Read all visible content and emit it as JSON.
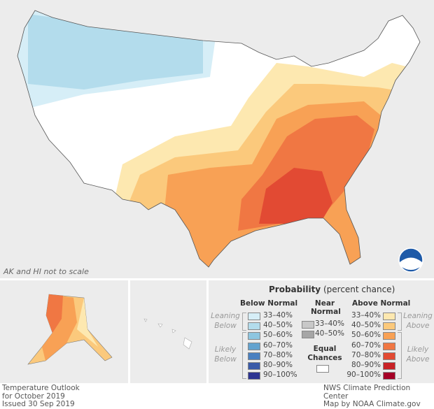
{
  "map_note": "AK and HI not to scale",
  "legend": {
    "title_bold": "Probability",
    "title_rest": "(percent chance)",
    "below": {
      "heading": "Below Normal",
      "leaning": "Leaning Below",
      "likely": "Likely Below",
      "items": [
        {
          "label": "33–40%",
          "color": "#d6eef7"
        },
        {
          "label": "40–50%",
          "color": "#b3dcec"
        },
        {
          "label": "50–60%",
          "color": "#8ec6e0"
        },
        {
          "label": "60–70%",
          "color": "#63a3cf"
        },
        {
          "label": "70–80%",
          "color": "#4a80c0"
        },
        {
          "label": "80–90%",
          "color": "#3a5aa8"
        },
        {
          "label": "90–100%",
          "color": "#2c3391"
        }
      ]
    },
    "near": {
      "heading_1": "Near",
      "heading_2": "Normal",
      "items": [
        {
          "label": "33–40%",
          "color": "#c8c8c8"
        },
        {
          "label": "40–50%",
          "color": "#a6a6a6"
        }
      ]
    },
    "equal": {
      "heading_1": "Equal",
      "heading_2": "Chances",
      "color": "#ffffff"
    },
    "above": {
      "heading": "Above Normal",
      "leaning": "Leaning Above",
      "likely": "Likely Above",
      "items": [
        {
          "label": "33–40%",
          "color": "#fde8b0"
        },
        {
          "label": "40–50%",
          "color": "#fbc97c"
        },
        {
          "label": "50–60%",
          "color": "#f8a155"
        },
        {
          "label": "60–70%",
          "color": "#f07743"
        },
        {
          "label": "70–80%",
          "color": "#e24a33"
        },
        {
          "label": "80–90%",
          "color": "#c82226"
        },
        {
          "label": "90–100%",
          "color": "#a50026"
        }
      ]
    }
  },
  "footer": {
    "left": [
      "Temperature Outlook",
      "for October 2019",
      "Issued 30 Sep 2019"
    ],
    "right": [
      "NWS Climate Prediction Center",
      "Map by NOAA Climate.gov"
    ]
  },
  "logo_text": "NOAA"
}
